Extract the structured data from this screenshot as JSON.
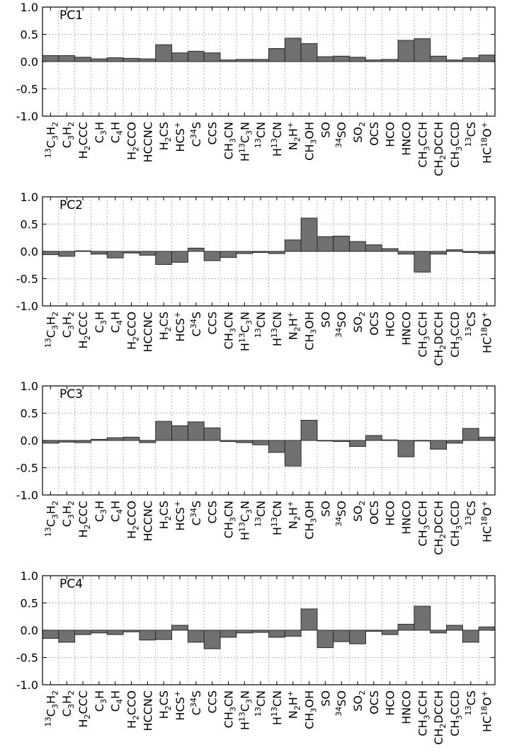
{
  "chart_data": [
    {
      "type": "bar",
      "panel_label": "PC1",
      "ylim": [
        -1.0,
        1.0
      ],
      "yticks": [
        "1.0",
        "0.5",
        "0.0",
        "-0.5",
        "-1.0"
      ],
      "grid": true,
      "values": [
        0.11,
        0.11,
        0.08,
        0.05,
        0.07,
        0.06,
        0.05,
        0.31,
        0.16,
        0.19,
        0.16,
        0.03,
        0.04,
        0.04,
        0.24,
        0.43,
        0.33,
        0.09,
        0.1,
        0.08,
        0.03,
        0.04,
        0.39,
        0.42,
        0.1,
        0.03,
        0.07,
        0.12
      ]
    },
    {
      "type": "bar",
      "panel_label": "PC2",
      "ylim": [
        -1.0,
        1.0
      ],
      "yticks": [
        "1.0",
        "0.5",
        "0.0",
        "-0.5",
        "-1.0"
      ],
      "grid": true,
      "values": [
        -0.06,
        -0.09,
        0.01,
        -0.05,
        -0.12,
        -0.03,
        -0.07,
        -0.24,
        -0.2,
        0.06,
        -0.17,
        -0.11,
        -0.04,
        -0.02,
        -0.04,
        0.21,
        0.61,
        0.27,
        0.28,
        0.18,
        0.12,
        0.05,
        -0.05,
        -0.38,
        -0.05,
        0.03,
        -0.02,
        -0.04
      ]
    },
    {
      "type": "bar",
      "panel_label": "PC3",
      "ylim": [
        -1.0,
        1.0
      ],
      "yticks": [
        "1.0",
        "0.5",
        "0.0",
        "-0.5",
        "-1.0"
      ],
      "grid": true,
      "values": [
        -0.05,
        -0.03,
        -0.04,
        0.02,
        0.05,
        0.06,
        -0.04,
        0.35,
        0.27,
        0.34,
        0.23,
        -0.02,
        -0.04,
        -0.08,
        -0.22,
        -0.47,
        0.37,
        0.0,
        -0.02,
        -0.11,
        0.09,
        0.01,
        -0.3,
        -0.01,
        -0.16,
        -0.05,
        0.22,
        0.06
      ]
    },
    {
      "type": "bar",
      "panel_label": "PC4",
      "ylim": [
        -1.0,
        1.0
      ],
      "yticks": [
        "1.0",
        "0.5",
        "0.0",
        "-0.5",
        "-1.0"
      ],
      "grid": true,
      "values": [
        -0.15,
        -0.22,
        -0.08,
        -0.05,
        -0.08,
        -0.03,
        -0.18,
        -0.17,
        0.09,
        -0.22,
        -0.34,
        -0.13,
        -0.05,
        -0.04,
        -0.13,
        -0.11,
        0.39,
        -0.32,
        -0.21,
        -0.25,
        -0.02,
        -0.08,
        0.11,
        0.44,
        -0.05,
        0.09,
        -0.22,
        0.06
      ]
    }
  ],
  "categories": [
    "13C3H2",
    "C3H2",
    "H2CCC",
    "C3H",
    "C4H",
    "H2CCO",
    "HCCNC",
    "H2CS",
    "HCS+",
    "C34S",
    "CCS",
    "CH3CN",
    "H13C3N",
    "13CN",
    "H13CN",
    "N2H+",
    "CH3OH",
    "SO",
    "34SO",
    "SO2",
    "OCS",
    "HCO",
    "HNCO",
    "CH3CCH",
    "CH2DCCH",
    "CH3CCD",
    "13CS",
    "HC18O+"
  ],
  "category_parts": [
    [
      [
        "sup",
        "13"
      ],
      [
        "t",
        "C"
      ],
      [
        "sub",
        "3"
      ],
      [
        "t",
        "H"
      ],
      [
        "sub",
        "2"
      ]
    ],
    [
      [
        "t",
        "C"
      ],
      [
        "sub",
        "3"
      ],
      [
        "t",
        "H"
      ],
      [
        "sub",
        "2"
      ]
    ],
    [
      [
        "t",
        "H"
      ],
      [
        "sub",
        "2"
      ],
      [
        "t",
        "CCC"
      ]
    ],
    [
      [
        "t",
        "C"
      ],
      [
        "sub",
        "3"
      ],
      [
        "t",
        "H"
      ]
    ],
    [
      [
        "t",
        "C"
      ],
      [
        "sub",
        "4"
      ],
      [
        "t",
        "H"
      ]
    ],
    [
      [
        "t",
        "H"
      ],
      [
        "sub",
        "2"
      ],
      [
        "t",
        "CCO"
      ]
    ],
    [
      [
        "t",
        "HCCNC"
      ]
    ],
    [
      [
        "t",
        "H"
      ],
      [
        "sub",
        "2"
      ],
      [
        "t",
        "CS"
      ]
    ],
    [
      [
        "t",
        "HCS"
      ],
      [
        "sup",
        "+"
      ]
    ],
    [
      [
        "t",
        "C"
      ],
      [
        "sup",
        "34"
      ],
      [
        "t",
        "S"
      ]
    ],
    [
      [
        "t",
        "CCS"
      ]
    ],
    [
      [
        "t",
        "CH"
      ],
      [
        "sub",
        "3"
      ],
      [
        "t",
        "CN"
      ]
    ],
    [
      [
        "t",
        "H"
      ],
      [
        "sup",
        "13"
      ],
      [
        "t",
        "C"
      ],
      [
        "sub",
        "3"
      ],
      [
        "t",
        "N"
      ]
    ],
    [
      [
        "sup",
        "13"
      ],
      [
        "t",
        "CN"
      ]
    ],
    [
      [
        "t",
        "H"
      ],
      [
        "sup",
        "13"
      ],
      [
        "t",
        "CN"
      ]
    ],
    [
      [
        "t",
        "N"
      ],
      [
        "sub",
        "2"
      ],
      [
        "t",
        "H"
      ],
      [
        "sup",
        "+"
      ]
    ],
    [
      [
        "t",
        "CH"
      ],
      [
        "sub",
        "3"
      ],
      [
        "t",
        "OH"
      ]
    ],
    [
      [
        "t",
        "SO"
      ]
    ],
    [
      [
        "sup",
        "34"
      ],
      [
        "t",
        "SO"
      ]
    ],
    [
      [
        "t",
        "SO"
      ],
      [
        "sub",
        "2"
      ]
    ],
    [
      [
        "t",
        "OCS"
      ]
    ],
    [
      [
        "t",
        "HCO"
      ]
    ],
    [
      [
        "t",
        "HNCO"
      ]
    ],
    [
      [
        "t",
        "CH"
      ],
      [
        "sub",
        "3"
      ],
      [
        "t",
        "CCH"
      ]
    ],
    [
      [
        "t",
        "CH"
      ],
      [
        "sub",
        "2"
      ],
      [
        "t",
        "DCCH"
      ]
    ],
    [
      [
        "t",
        "CH"
      ],
      [
        "sub",
        "3"
      ],
      [
        "t",
        "CCD"
      ]
    ],
    [
      [
        "sup",
        "13"
      ],
      [
        "t",
        "CS"
      ]
    ],
    [
      [
        "t",
        "HC"
      ],
      [
        "sup",
        "18"
      ],
      [
        "t",
        "O"
      ],
      [
        "sup",
        "+"
      ]
    ]
  ],
  "colors": {
    "bar_fill": "#707070",
    "bar_stroke": "#2a2a2a",
    "axis": "#000000",
    "grid": "#9a9a9a"
  }
}
